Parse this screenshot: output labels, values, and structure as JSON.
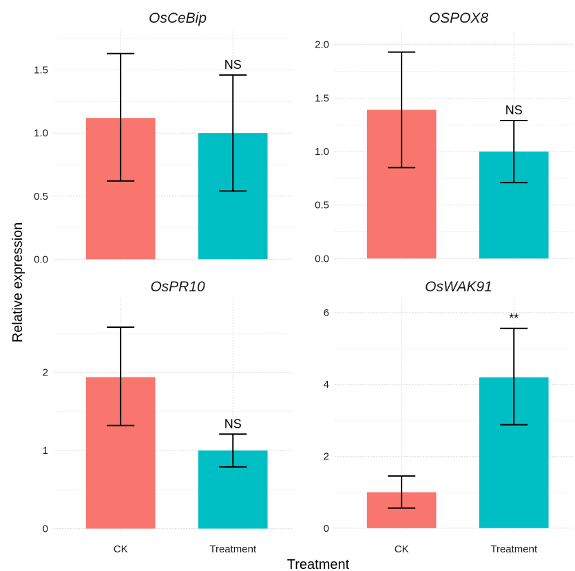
{
  "figure": {
    "xlabel": "Treatment",
    "ylabel": "Relative expression"
  },
  "colors": {
    "CK": "#F8766D",
    "Treatment": "#00BFC4"
  },
  "chart_data": [
    {
      "type": "bar",
      "title": "OsCeBip",
      "categories": [
        "CK",
        "Treatment"
      ],
      "values": [
        1.12,
        1.0
      ],
      "error_low": [
        0.62,
        0.54
      ],
      "error_high": [
        1.63,
        1.46
      ],
      "significance": [
        "",
        "NS"
      ],
      "yticks": [
        0.0,
        0.5,
        1.0,
        1.5
      ],
      "ytick_labels": [
        "0.0",
        "0.5",
        "1.0",
        "1.5"
      ],
      "ylim": [
        -0.02,
        1.82
      ],
      "show_xticks": false
    },
    {
      "type": "bar",
      "title": "OSPOX8",
      "categories": [
        "CK",
        "Treatment"
      ],
      "values": [
        1.39,
        1.0
      ],
      "error_low": [
        0.85,
        0.71
      ],
      "error_high": [
        1.93,
        1.29
      ],
      "significance": [
        "",
        "NS"
      ],
      "yticks": [
        0.0,
        0.5,
        1.0,
        1.5,
        2.0
      ],
      "ytick_labels": [
        "0.0",
        "0.5",
        "1.0",
        "1.5",
        "2.0"
      ],
      "ylim": [
        -0.03,
        2.14
      ],
      "show_xticks": false
    },
    {
      "type": "bar",
      "title": "OsPR10",
      "categories": [
        "CK",
        "Treatment"
      ],
      "values": [
        1.94,
        1.0
      ],
      "error_low": [
        1.32,
        0.79
      ],
      "error_high": [
        2.58,
        1.21
      ],
      "significance": [
        "",
        "NS"
      ],
      "yticks": [
        0,
        1,
        2
      ],
      "ytick_labels": [
        "0",
        "1",
        "2"
      ],
      "ylim": [
        -0.04,
        2.95
      ],
      "show_xticks": true
    },
    {
      "type": "bar",
      "title": "OsWAK91",
      "categories": [
        "CK",
        "Treatment"
      ],
      "values": [
        1.0,
        4.2
      ],
      "error_low": [
        0.56,
        2.88
      ],
      "error_high": [
        1.45,
        5.56
      ],
      "significance": [
        "",
        "**"
      ],
      "yticks": [
        0,
        2,
        4,
        6
      ],
      "ytick_labels": [
        "0",
        "2",
        "4",
        "6"
      ],
      "ylim": [
        -0.1,
        6.4
      ],
      "show_xticks": true
    }
  ]
}
